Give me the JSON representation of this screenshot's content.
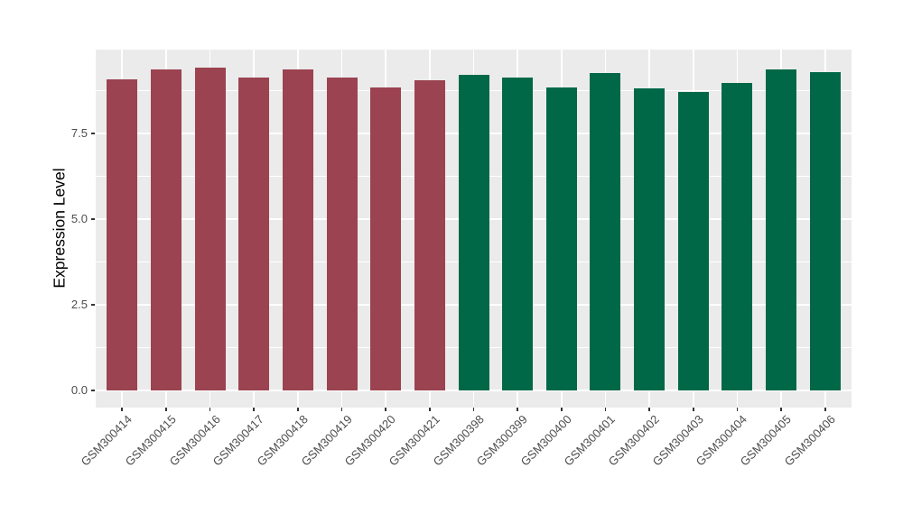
{
  "figure": {
    "background": "#FFFFFF"
  },
  "chart_data": {
    "type": "bar",
    "title": "",
    "xlabel": "",
    "ylabel": "Expression Level",
    "categories": [
      "GSM300414",
      "GSM300415",
      "GSM300416",
      "GSM300417",
      "GSM300418",
      "GSM300419",
      "GSM300420",
      "GSM300421",
      "GSM300398",
      "GSM300399",
      "GSM300400",
      "GSM300401",
      "GSM300402",
      "GSM300403",
      "GSM300404",
      "GSM300405",
      "GSM300406"
    ],
    "values": [
      9.08,
      9.37,
      9.43,
      9.14,
      9.36,
      9.12,
      8.84,
      9.05,
      9.22,
      9.12,
      8.83,
      9.27,
      8.81,
      8.72,
      8.98,
      9.38,
      9.3
    ],
    "bar_colors": [
      "#9B4350",
      "#9B4350",
      "#9B4350",
      "#9B4350",
      "#9B4350",
      "#9B4350",
      "#9B4350",
      "#9B4350",
      "#016847",
      "#016847",
      "#016847",
      "#016847",
      "#016847",
      "#016847",
      "#016847",
      "#016847",
      "#016847"
    ],
    "group_colors": {
      "left_group": "#9B4350",
      "right_group": "#016847"
    },
    "yticks_major": [
      0,
      2.5,
      5,
      7.5
    ],
    "ytick_labels": [
      "0.0",
      "2.5",
      "5.0",
      "7.5"
    ],
    "yticks_minor": [
      1.25,
      3.75,
      6.25,
      8.75
    ],
    "ylim": [
      -0.5,
      9.95
    ],
    "grid": true,
    "legend": "none",
    "colors": {
      "panel_bg": "#EBEBEB",
      "grid": "#FFFFFF",
      "axis_text": "#4D4D4D",
      "axis_title": "#000000",
      "tick_mark": "#333333"
    }
  }
}
